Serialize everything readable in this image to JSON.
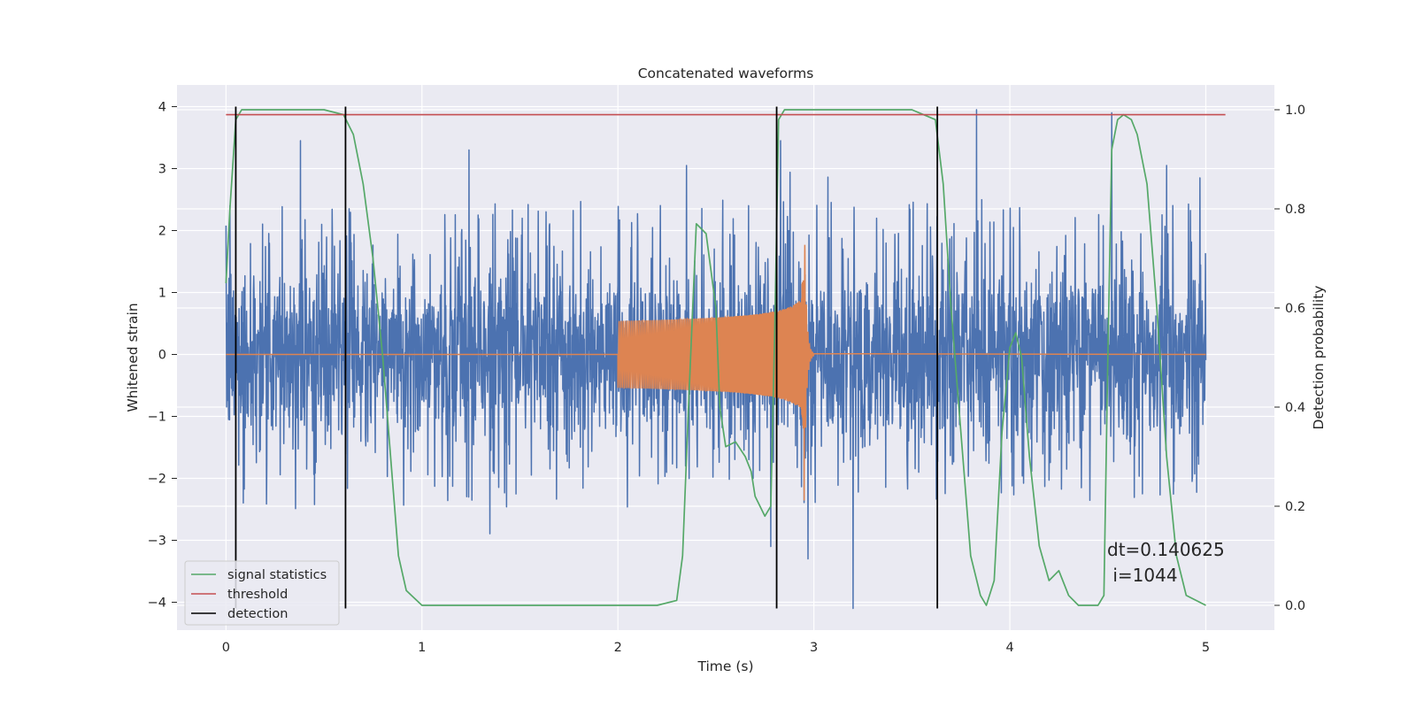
{
  "chart_data": {
    "type": "line",
    "title": "Concatenated waveforms",
    "xlabel": "Time (s)",
    "ylabel": "Whitened strain",
    "y2label": "Detection probability",
    "xlim": [
      -0.25,
      5.35
    ],
    "ylim": [
      -4.45,
      4.35
    ],
    "y2lim": [
      -0.05,
      1.05
    ],
    "x_ticks": [
      0,
      1,
      2,
      3,
      4,
      5
    ],
    "y_ticks": [
      -4,
      -3,
      -2,
      -1,
      0,
      1,
      2,
      3,
      4
    ],
    "y2_ticks": [
      0.0,
      0.2,
      0.4,
      0.6,
      0.8,
      1.0
    ],
    "x_tick_labels": [
      "0",
      "1",
      "2",
      "3",
      "4",
      "5"
    ],
    "y_tick_labels": [
      "−4",
      "−3",
      "−2",
      "−1",
      "0",
      "1",
      "2",
      "3",
      "4"
    ],
    "y2_tick_labels": [
      "0.0",
      "0.2",
      "0.4",
      "0.6",
      "0.8",
      "1.0"
    ],
    "grid": true,
    "legend_position": "lower-left",
    "colors": {
      "background": "#eaeaf2",
      "grid": "#ffffff",
      "strain": "#4c72b0",
      "injection": "#dd8452",
      "statistic": "#55a868",
      "threshold": "#c44e52",
      "detection": "#000000"
    },
    "strain": {
      "x_range": [
        0,
        5
      ],
      "y_range_approx": [
        -4.1,
        4.0
      ],
      "typical_amplitude": 0.75,
      "spikes": [
        {
          "x": 0.02,
          "y": 2.4
        },
        {
          "x": 0.38,
          "y": 3.45
        },
        {
          "x": 1.24,
          "y": 3.3
        },
        {
          "x": 2.35,
          "y": 3.05
        },
        {
          "x": 2.78,
          "y": -3.1
        },
        {
          "x": 2.83,
          "y": 3.45
        },
        {
          "x": 2.97,
          "y": -3.3
        },
        {
          "x": 3.2,
          "y": -4.1
        },
        {
          "x": 3.83,
          "y": 3.95
        },
        {
          "x": 4.52,
          "y": 3.9
        },
        {
          "x": 4.8,
          "y": 3.05
        },
        {
          "x": 4.97,
          "y": 2.85
        }
      ]
    },
    "injection": {
      "start": 2.0,
      "merger": 2.95,
      "end": 3.0,
      "peak_amplitude": 2.1
    },
    "series": [
      {
        "name": "signal statistics",
        "axis": "right",
        "x": [
          0,
          0.02,
          0.05,
          0.08,
          0.1,
          0.2,
          0.5,
          0.6,
          0.65,
          0.7,
          0.75,
          0.8,
          0.85,
          0.88,
          0.92,
          1.0,
          2.2,
          2.3,
          2.33,
          2.36,
          2.4,
          2.45,
          2.5,
          2.52,
          2.55,
          2.6,
          2.65,
          2.68,
          2.7,
          2.75,
          2.78,
          2.8,
          2.82,
          2.85,
          2.9,
          3.5,
          3.62,
          3.66,
          3.7,
          3.75,
          3.8,
          3.85,
          3.88,
          3.92,
          3.96,
          4.0,
          4.03,
          4.06,
          4.1,
          4.15,
          4.2,
          4.25,
          4.3,
          4.35,
          4.4,
          4.45,
          4.48,
          4.5,
          4.52,
          4.55,
          4.58,
          4.62,
          4.65,
          4.7,
          4.75,
          4.8,
          4.85,
          4.9,
          5.0
        ],
        "y": [
          0.65,
          0.8,
          0.98,
          1.0,
          1.0,
          1.0,
          1.0,
          0.99,
          0.95,
          0.85,
          0.7,
          0.5,
          0.25,
          0.1,
          0.03,
          0.0,
          0.0,
          0.01,
          0.1,
          0.4,
          0.77,
          0.75,
          0.6,
          0.4,
          0.32,
          0.33,
          0.3,
          0.27,
          0.22,
          0.18,
          0.2,
          0.55,
          0.98,
          1.0,
          1.0,
          1.0,
          0.98,
          0.85,
          0.6,
          0.35,
          0.1,
          0.02,
          0.0,
          0.05,
          0.35,
          0.52,
          0.55,
          0.5,
          0.3,
          0.12,
          0.05,
          0.07,
          0.02,
          0.0,
          0.0,
          0.0,
          0.02,
          0.5,
          0.92,
          0.98,
          0.99,
          0.98,
          0.95,
          0.85,
          0.6,
          0.3,
          0.1,
          0.02,
          0.0
        ]
      },
      {
        "name": "threshold",
        "axis": "right",
        "x": [
          0,
          5.1
        ],
        "y": [
          0.99,
          0.99
        ]
      },
      {
        "name": "detection",
        "axis": "left",
        "x_positions": [
          0.05,
          0.61,
          2.81,
          3.63
        ],
        "y_range": [
          -4.1,
          4.0
        ]
      }
    ],
    "annotations": [
      {
        "text": "dt=0.140625",
        "x": 4.5,
        "y": -3.2
      },
      {
        "text": " i=1044",
        "x": 4.5,
        "y": -3.6
      }
    ]
  }
}
